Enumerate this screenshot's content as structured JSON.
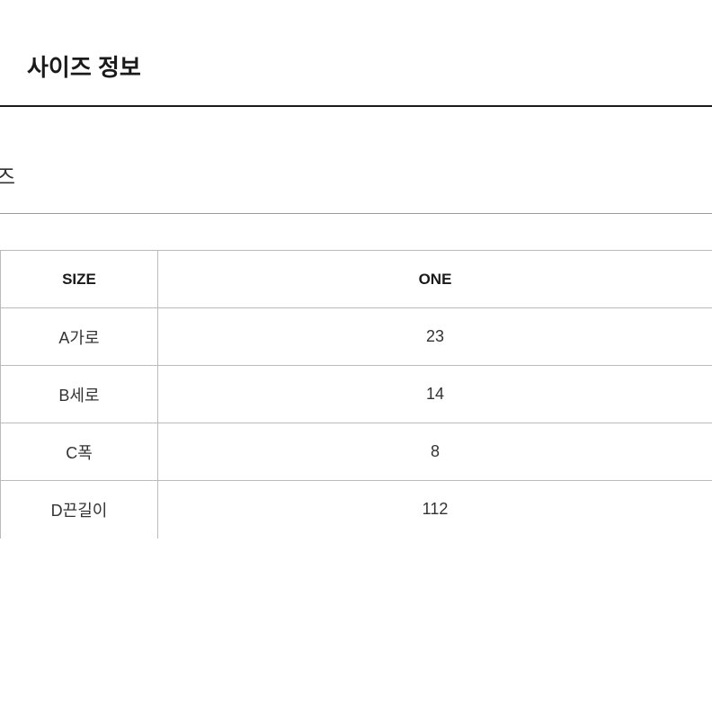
{
  "page": {
    "title": "사이즈 정보",
    "section_label": "즈"
  },
  "size_table": {
    "type": "table",
    "columns": [
      "SIZE",
      "ONE"
    ],
    "rows": [
      {
        "label": "A가로",
        "value": "23"
      },
      {
        "label": "B세로",
        "value": "14"
      },
      {
        "label": "C폭",
        "value": "8"
      },
      {
        "label": "D끈길이",
        "value": "112"
      }
    ],
    "border_color": "#bbbbbb",
    "header_font_weight": 700,
    "text_color": "#333333",
    "background_color": "#ffffff"
  }
}
